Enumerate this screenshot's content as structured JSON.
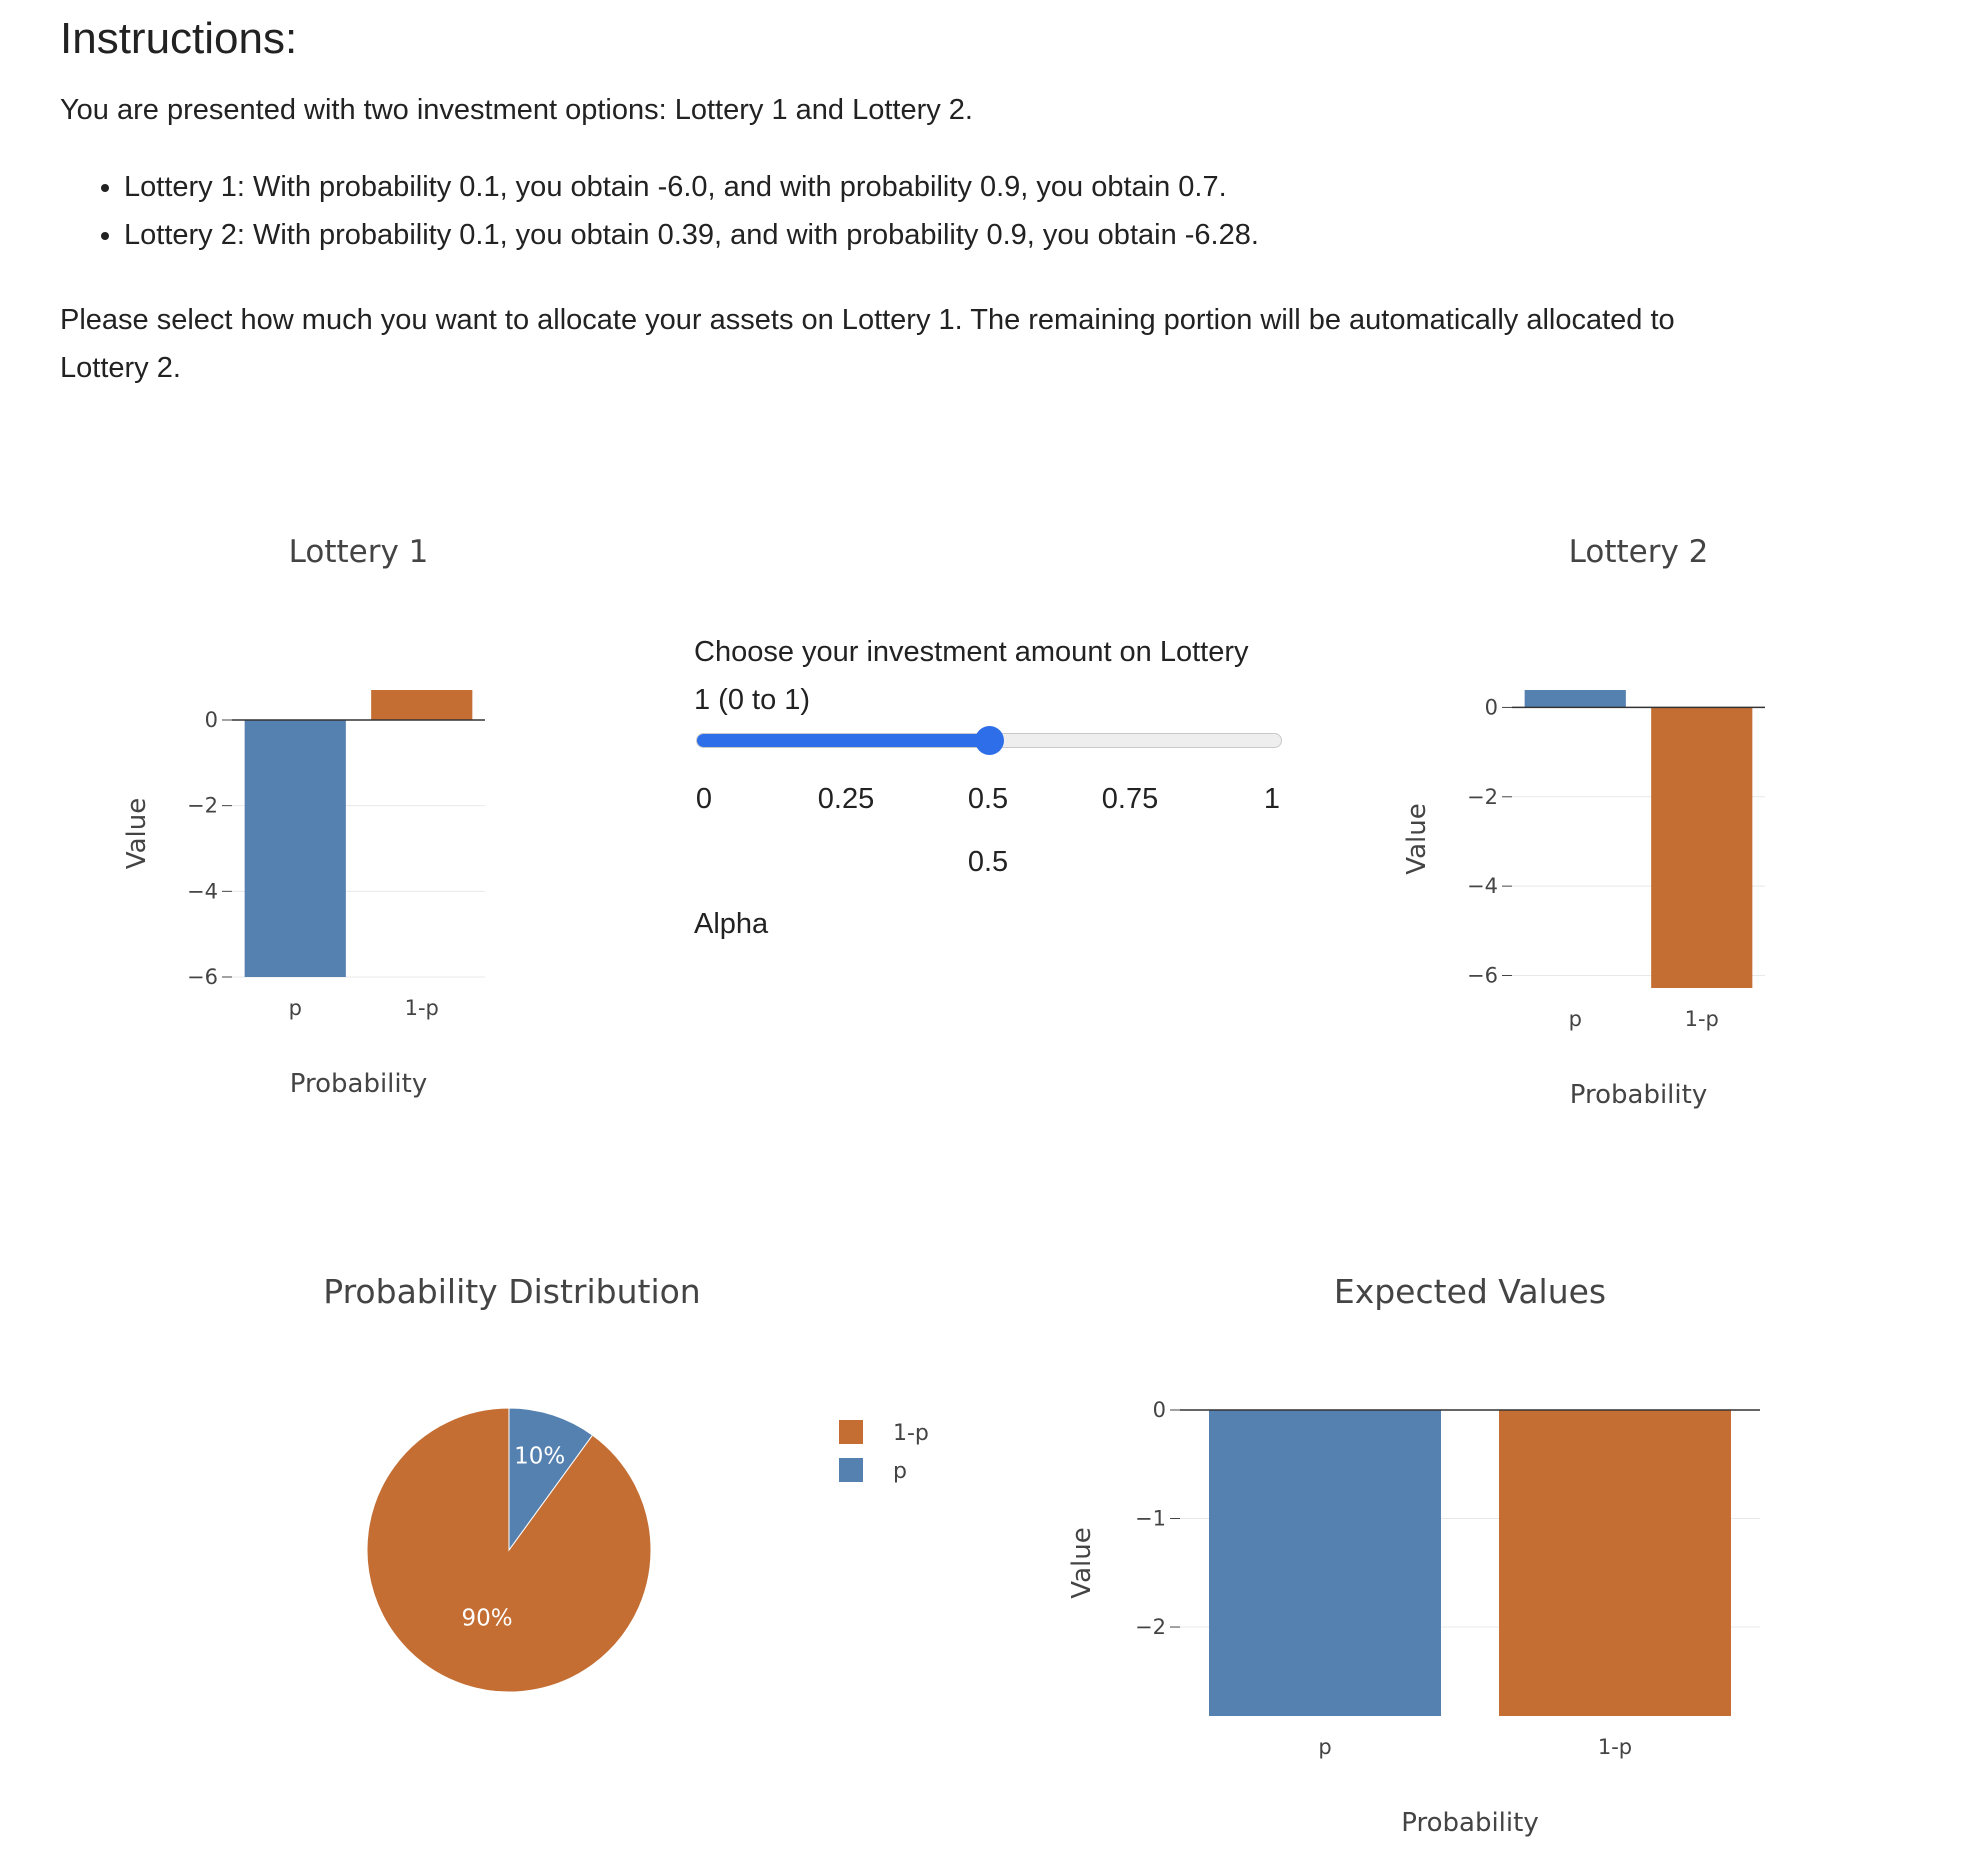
{
  "instructions": {
    "heading": "Instructions:",
    "intro": "You are presented with two investment options: Lottery 1 and Lottery 2.",
    "bullets": [
      "Lottery 1: With probability 0.1, you obtain -6.0, and with probability 0.9, you obtain 0.7.",
      "Lottery 2: With probability 0.1, you obtain 0.39, and with probability 0.9, you obtain -6.28."
    ],
    "allocation_line1": "Please select how much you want to allocate your assets on Lottery 1. The remaining portion will be automatically allocated to",
    "allocation_line2": "Lottery 2."
  },
  "slider": {
    "label": "Choose your investment amount on Lottery 1 (0 to 1)",
    "min": 0,
    "max": 1,
    "value": 0.5,
    "ticks": [
      "0",
      "0.25",
      "0.5",
      "0.75",
      "1"
    ],
    "current_value": "0.5",
    "name": "Alpha"
  },
  "colors": {
    "p": "#5581b0",
    "one_minus_p": "#c46e34",
    "grid": "#e8e8e8",
    "axis": "#444444"
  },
  "chart_data": [
    {
      "id": "lottery1",
      "type": "bar",
      "title": "Lottery 1",
      "xlabel": "Probability",
      "ylabel": "Value",
      "categories": [
        "p",
        "1-p"
      ],
      "values": [
        -6.0,
        0.7
      ],
      "ylim": [
        -6.0,
        0.7
      ],
      "yticks": [
        0,
        -2,
        -4,
        -6
      ],
      "ytick_labels": [
        "0",
        "−2",
        "−4",
        "−6"
      ]
    },
    {
      "id": "lottery2",
      "type": "bar",
      "title": "Lottery 2",
      "xlabel": "Probability",
      "ylabel": "Value",
      "categories": [
        "p",
        "1-p"
      ],
      "values": [
        0.39,
        -6.28
      ],
      "ylim": [
        -6.28,
        0.39
      ],
      "yticks": [
        0,
        -2,
        -4,
        -6
      ],
      "ytick_labels": [
        "0",
        "−2",
        "−4",
        "−6"
      ]
    },
    {
      "id": "probdist",
      "type": "pie",
      "title": "Probability Distribution",
      "labels": [
        "1-p",
        "p"
      ],
      "values": [
        0.9,
        0.1
      ],
      "slice_labels": [
        "90%",
        "10%"
      ],
      "legend": [
        "1-p",
        "p"
      ],
      "legend_position": "right"
    },
    {
      "id": "expected",
      "type": "bar",
      "title": "Expected Values",
      "xlabel": "Probability",
      "ylabel": "Value",
      "categories": [
        "p",
        "1-p"
      ],
      "values": [
        -2.82,
        -2.82
      ],
      "ylim": [
        -2.82,
        0
      ],
      "yticks": [
        0,
        -1,
        -2
      ],
      "ytick_labels": [
        "0",
        "−1",
        "−2"
      ]
    }
  ]
}
